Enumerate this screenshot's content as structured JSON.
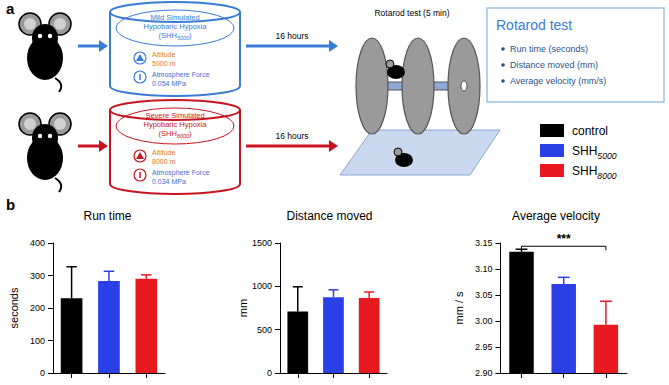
{
  "panel_labels": [
    "a",
    "b"
  ],
  "diagram": {
    "groups": [
      {
        "title": [
          "Mild Simulated",
          "Hypobaric Hypoxia"
        ],
        "code": {
          "before": "(SHH",
          "sub": "5000",
          "after": ")"
        },
        "altitude_label": "Altitude",
        "altitude": "5000 m",
        "force_label": "Atmosphere Force",
        "force": "0.054 MPa",
        "duration": "16 hours"
      },
      {
        "title": [
          "Severe Simulated",
          "Hypobaric Hypoxia"
        ],
        "code": {
          "before": "(SHH",
          "sub": "8000",
          "after": ")"
        },
        "altitude_label": "Altitude",
        "altitude": "8000 m",
        "force_label": "Atmosphere Force",
        "force": "0.034 MPa",
        "duration": "16 hours"
      }
    ],
    "rotarod_label": "Rotarod test (5 min)",
    "box": {
      "title": "Rotarod test",
      "items": [
        "Run time (seconds)",
        "Distance moved (mm)",
        "Average velocity (mm/s)"
      ]
    },
    "legend": [
      {
        "name": "control",
        "color": "#000000"
      },
      {
        "name": "SHH",
        "sub": "5000",
        "color": "#2b3fe6"
      },
      {
        "name": "SHH",
        "sub": "8000",
        "color": "#e8191f"
      }
    ]
  },
  "chart_data": [
    {
      "type": "bar",
      "title": "Run time",
      "y_label": "seconds",
      "categories": [
        null,
        null,
        null
      ],
      "values": [
        230,
        283,
        290
      ],
      "errors": [
        97,
        30,
        12
      ],
      "colors": [
        "#000000",
        "#2b3fe6",
        "#e8191f"
      ],
      "ylim": [
        0,
        400
      ],
      "yticks": [
        0,
        100,
        200,
        300,
        400
      ]
    },
    {
      "type": "bar",
      "title": "Distance moved",
      "y_label": "mm",
      "categories": [
        null,
        null,
        null
      ],
      "values": [
        710,
        875,
        865
      ],
      "errors": [
        285,
        85,
        70
      ],
      "colors": [
        "#000000",
        "#2b3fe6",
        "#e8191f"
      ],
      "ylim": [
        0,
        1500
      ],
      "yticks": [
        0,
        500,
        1000,
        1500
      ]
    },
    {
      "type": "bar",
      "title": "Average velocity",
      "y_label": "mm / s",
      "categories": [
        null,
        null,
        null
      ],
      "values": [
        3.133,
        3.071,
        2.993
      ],
      "errors": [
        0.005,
        0.013,
        0.045
      ],
      "colors": [
        "#000000",
        "#2b3fe6",
        "#e8191f"
      ],
      "ylim": [
        2.9,
        3.15
      ],
      "yticks": [
        {
          "value": 2.9,
          "label": "2.90"
        },
        {
          "value": 2.95,
          "label": "2.95"
        },
        {
          "value": 3.0,
          "label": "3.00"
        },
        {
          "value": 3.05,
          "label": "3.05"
        },
        {
          "value": 3.1,
          "label": "3.10"
        },
        {
          "value": 3.15,
          "label": "3.15"
        }
      ],
      "annotations": [
        {
          "text": "***",
          "from": 0,
          "to": 2
        }
      ]
    }
  ]
}
